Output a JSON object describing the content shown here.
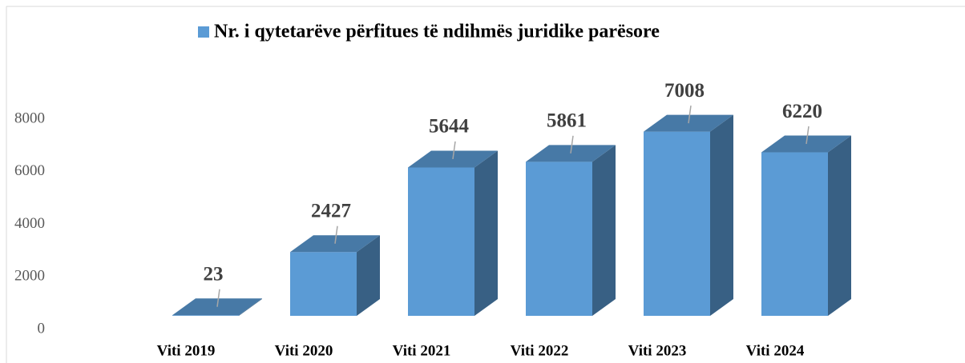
{
  "chart_data": {
    "type": "bar3d",
    "title": "Nr. i qytetarëve përfitues të ndihmës juridike parësore",
    "categories": [
      "Viti 2019",
      "Viti 2020",
      "Viti 2021",
      "Viti 2022",
      "Viti 2023",
      "Viti 2024"
    ],
    "values": [
      23,
      2427,
      5644,
      5861,
      7008,
      6220
    ],
    "color": "#5b9bd5",
    "ylim": [
      0,
      8000
    ],
    "yticks": [
      0,
      2000,
      4000,
      6000,
      8000
    ]
  }
}
